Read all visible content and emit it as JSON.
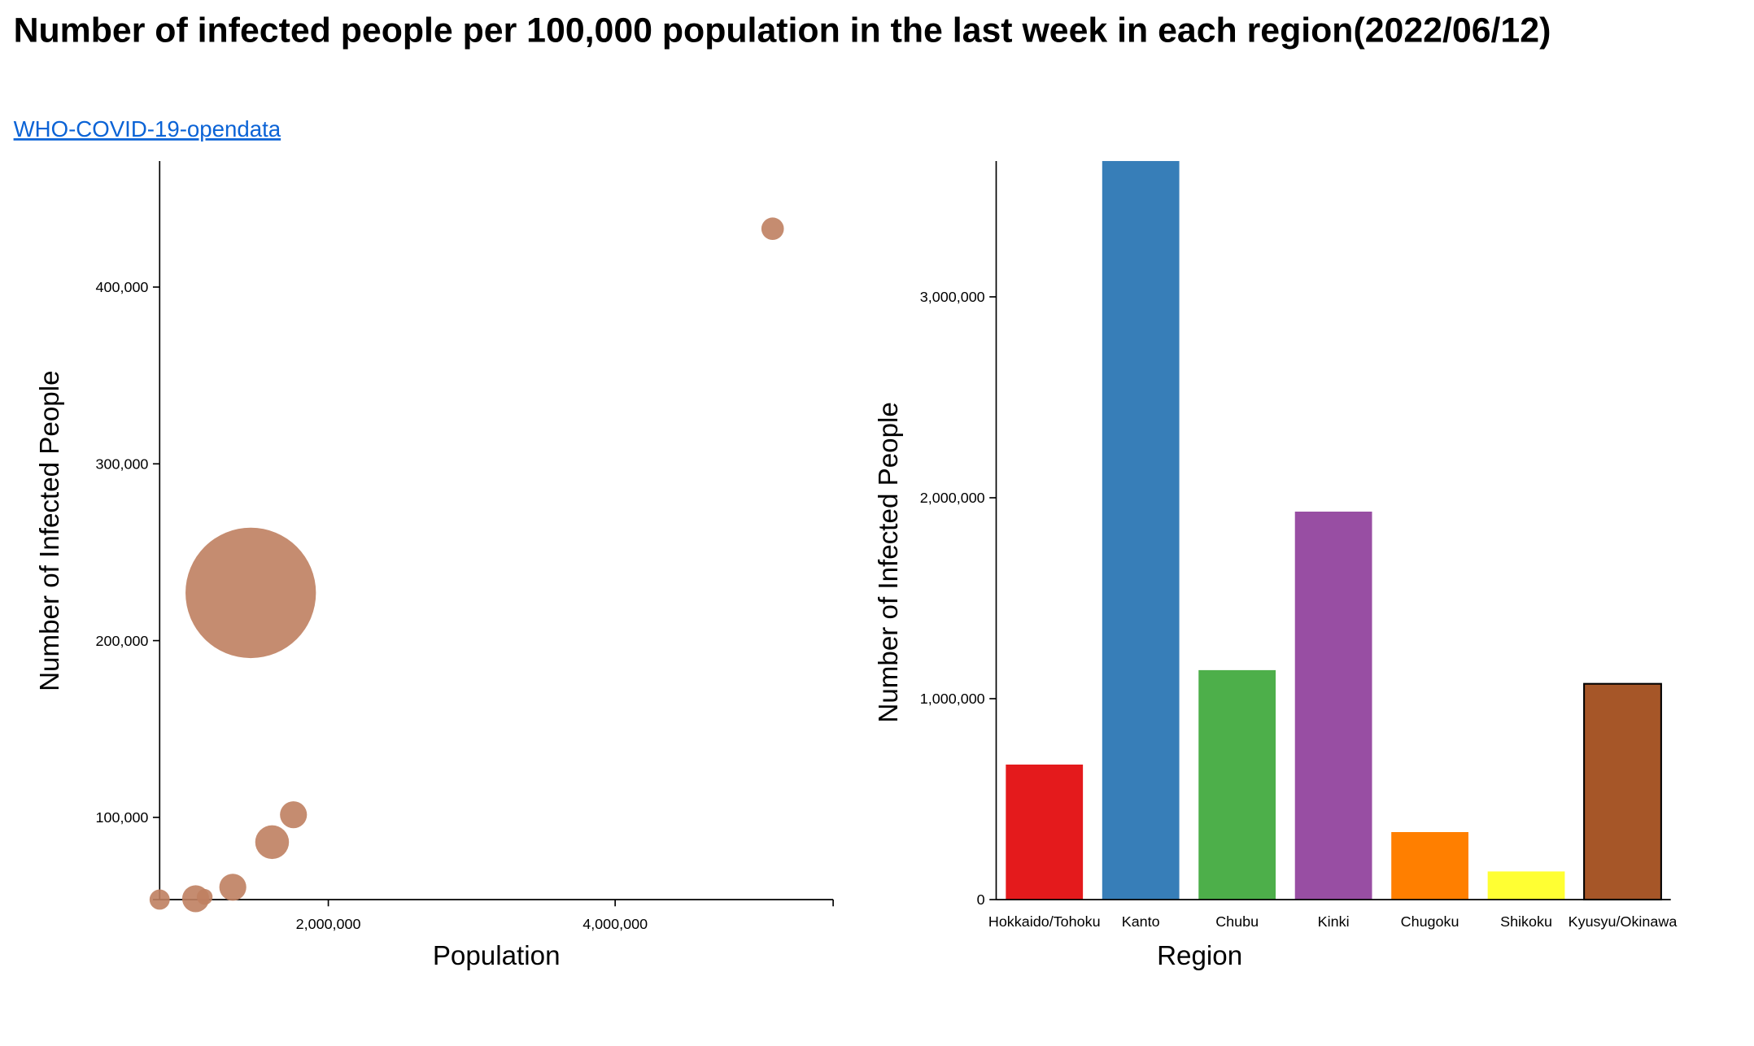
{
  "title": "Number of infected people per 100,000 population in the last week in each region(2022/06/12)",
  "link": "WHO-COVID-19-opendata",
  "chart_data": [
    {
      "type": "scatter",
      "x_label": "Population",
      "y_label": "Number of Infected People",
      "color": "#bf8060",
      "x": [
        824000,
        1075000,
        1138000,
        1334000,
        1608000,
        1757000,
        1459000,
        5098000
      ],
      "values": [
        53500,
        54000,
        55000,
        60500,
        86000,
        101500,
        227000,
        433000
      ],
      "sizes": [
        9,
        12,
        7,
        12,
        15,
        12,
        58,
        10
      ],
      "xlim": [
        824000,
        5520000
      ],
      "xticks": [
        {
          "value": 2000000,
          "label": "2,000,000"
        },
        {
          "value": 4000000,
          "label": "4,000,000"
        }
      ],
      "ylim": [
        53500,
        471300
      ],
      "yticks": [
        {
          "value": 100000,
          "label": "100,000"
        },
        {
          "value": 200000,
          "label": "200,000"
        },
        {
          "value": 300000,
          "label": "300,000"
        },
        {
          "value": 400000,
          "label": "400,000"
        }
      ]
    },
    {
      "type": "bar",
      "x_label": "Region",
      "y_label": "Number of Infected People",
      "categories": [
        "Hokkaido/Tohoku",
        "Kanto",
        "Chubu",
        "Kinki",
        "Chugoku",
        "Shikoku",
        "Kyusyu/Okinawa"
      ],
      "values": [
        672000,
        3676000,
        1142000,
        1931000,
        336000,
        140000,
        1074000
      ],
      "colors": [
        "#e41a1c",
        "#377eb8",
        "#4daf4a",
        "#984ea3",
        "#ff7f00",
        "#ffff33",
        "#a65628"
      ],
      "ylim": [
        0,
        3676000
      ],
      "yticks": [
        0,
        {
          "value": 1000000,
          "label": "1,000,000"
        },
        {
          "value": 2000000,
          "label": "2,000,000"
        },
        {
          "value": 3000000,
          "label": "3,000,000"
        }
      ]
    }
  ]
}
